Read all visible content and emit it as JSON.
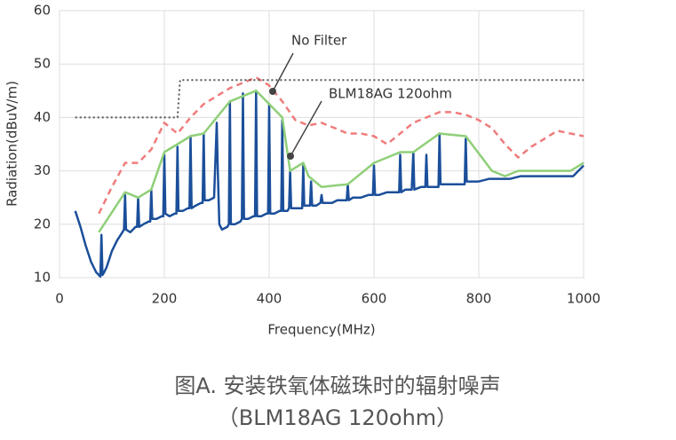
{
  "chart_data": {
    "type": "line",
    "x_label": "Frequency(MHz)",
    "y_label": "Radiation(dBuV/m)",
    "xlim": [
      0,
      1000
    ],
    "ylim": [
      10,
      60
    ],
    "xticks": [
      0,
      200,
      400,
      600,
      800,
      1000
    ],
    "yticks": [
      10,
      20,
      30,
      40,
      50,
      60
    ],
    "grid": true,
    "series": [
      {
        "color": "#1b4f9a",
        "style": "solid",
        "width": 2.5,
        "x": [
          30,
          35,
          40,
          50,
          60,
          70,
          75,
          78,
          80,
          82,
          85,
          90,
          100,
          110,
          120,
          123,
          125,
          127,
          135,
          145,
          148,
          150,
          152,
          160,
          170,
          173,
          175,
          177,
          185,
          195,
          198,
          200,
          202,
          210,
          220,
          223,
          225,
          227,
          235,
          245,
          248,
          250,
          252,
          260,
          270,
          273,
          275,
          277,
          285,
          295,
          300,
          302,
          305,
          310,
          320,
          323,
          325,
          327,
          335,
          345,
          348,
          350,
          352,
          360,
          370,
          373,
          375,
          377,
          385,
          395,
          398,
          400,
          402,
          410,
          420,
          423,
          425,
          427,
          435,
          438,
          440,
          442,
          450,
          460,
          463,
          465,
          467,
          475,
          478,
          480,
          482,
          490,
          498,
          500,
          502,
          510,
          520,
          530,
          548,
          550,
          552,
          560,
          575,
          590,
          598,
          600,
          602,
          610,
          625,
          635,
          648,
          650,
          652,
          660,
          672,
          675,
          677,
          690,
          698,
          700,
          702,
          710,
          723,
          725,
          727,
          740,
          750,
          760,
          773,
          775,
          777,
          790,
          800,
          820,
          840,
          860,
          880,
          900,
          920,
          940,
          960,
          980,
          1000
        ],
        "values": [
          22.5,
          21,
          19.5,
          16,
          13,
          11,
          10.5,
          10.2,
          18,
          10.5,
          11,
          12,
          15,
          17,
          18.5,
          19,
          25.5,
          19,
          18.5,
          19.5,
          19.5,
          25,
          19.5,
          20,
          20.5,
          20.5,
          26.5,
          21,
          21,
          21.5,
          21.5,
          33,
          22,
          21.5,
          22,
          22,
          34.5,
          22.5,
          22.5,
          23,
          23,
          36.5,
          23,
          23.5,
          24,
          24,
          37,
          24.5,
          24.5,
          25,
          39,
          30,
          20,
          19,
          19.5,
          20,
          43,
          20,
          20,
          20.5,
          21,
          44.5,
          21,
          21,
          21.5,
          21.5,
          45,
          21.5,
          21.5,
          22,
          22,
          42.5,
          22,
          22,
          22.5,
          22.5,
          39.5,
          22.5,
          22.5,
          23,
          30,
          23,
          23,
          23,
          23,
          31,
          23.5,
          23.5,
          23.5,
          28,
          23.5,
          23.5,
          24,
          25.5,
          24,
          24,
          24,
          24.5,
          24.5,
          27.5,
          24.5,
          25,
          25,
          25.5,
          25.5,
          31,
          25.5,
          25.5,
          26,
          26,
          26,
          33,
          26,
          26.5,
          26.5,
          33.5,
          26.5,
          27,
          27,
          33,
          27,
          27,
          27,
          37,
          27.5,
          27.5,
          27.5,
          27.5,
          27.5,
          36,
          28,
          28,
          28,
          28.5,
          28.5,
          28.5,
          29,
          29,
          29,
          29,
          29,
          29,
          31
        ]
      },
      {
        "name": "No Filter",
        "color": "#f07c7c",
        "style": "dashed",
        "width": 2.5,
        "x": [
          75,
          100,
          125,
          150,
          175,
          200,
          225,
          250,
          275,
          300,
          325,
          350,
          375,
          400,
          425,
          450,
          475,
          500,
          525,
          550,
          575,
          600,
          625,
          650,
          675,
          700,
          725,
          750,
          775,
          800,
          825,
          850,
          875,
          900,
          925,
          950,
          975,
          1000
        ],
        "values": [
          22,
          27,
          31.5,
          31.5,
          34,
          39,
          37,
          40,
          42.5,
          44,
          45.5,
          46.5,
          47.5,
          46,
          43,
          39.5,
          38.5,
          39,
          38,
          37,
          37,
          36.5,
          35,
          37,
          39,
          40,
          41,
          41,
          40.5,
          39.5,
          38,
          35,
          32.5,
          34.5,
          36,
          37.5,
          37,
          36.5
        ]
      },
      {
        "name": "BLM18AG 120ohm",
        "color": "#8fcf78",
        "style": "solid",
        "width": 2.5,
        "x": [
          75,
          125,
          150,
          175,
          200,
          225,
          250,
          275,
          300,
          325,
          375,
          400,
          425,
          440,
          465,
          475,
          500,
          550,
          600,
          650,
          675,
          725,
          775,
          825,
          850,
          875,
          925,
          975,
          1000
        ],
        "values": [
          18.5,
          26,
          25,
          26.5,
          33.5,
          35,
          36.5,
          37,
          40,
          43,
          45,
          42.5,
          40,
          30,
          31.5,
          29,
          27,
          27.5,
          31.5,
          33.5,
          33.5,
          37,
          36.5,
          30,
          29,
          30,
          30,
          30,
          31.5
        ]
      },
      {
        "color": "#555555",
        "style": "dotted",
        "width": 2,
        "x": [
          30,
          225,
          230,
          1000
        ],
        "values": [
          40,
          40,
          47,
          47
        ]
      }
    ]
  },
  "caption": [
    "图A.  安装铁氧体磁珠时的辐射噪声",
    "（BLM18AG 120ohm）"
  ]
}
